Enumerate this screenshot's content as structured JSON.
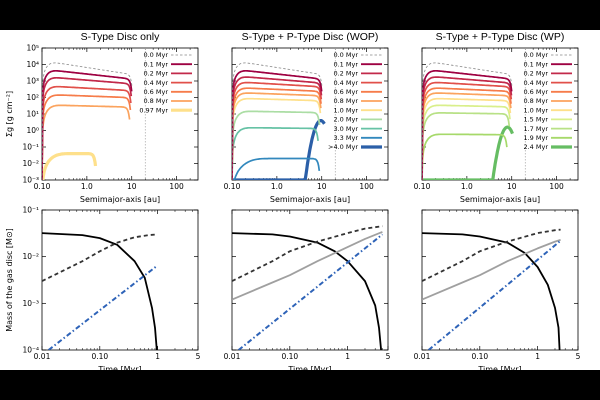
{
  "figure": {
    "panel_titles": [
      "S-Type Disc only",
      "S-Type + P-Type Disc (WOP)",
      "S-Type + P-Type Disc (WP)"
    ],
    "top_ylabel": "Σg [g cm⁻²]",
    "top_xlabel": "Semimajor-axis [au]",
    "bottom_ylabel": "Mass of the gas disc [M⊙]",
    "bottom_xlabel": "Time [Myr]"
  },
  "chart_data": [
    {
      "type": "line",
      "panel": "top",
      "title": "S-Type Disc only",
      "xlabel": "Semimajor-axis [au]",
      "ylabel": "Σg [g cm⁻²]",
      "xscale": "log",
      "yscale": "log",
      "xlim": [
        0.1,
        300
      ],
      "ylim": [
        0.001,
        100000
      ],
      "xticks": [
        "0.10",
        "1.0",
        "10",
        "100"
      ],
      "yticks": [
        "10⁻³",
        "10⁻²",
        "10⁻¹",
        "10⁰",
        "10¹",
        "10²",
        "10³",
        "10⁴",
        "10⁵"
      ],
      "vline_au": 20,
      "legend_position": "top-right",
      "series": [
        {
          "name": "0.0 Myr",
          "color": "#888888",
          "dashed": true,
          "peak": 16000,
          "rpeak": 0.12,
          "slope": -0.42,
          "rcut": 9.8
        },
        {
          "name": "0.1 Myr",
          "color": "#9e0142",
          "peak": 5000,
          "rpeak": 0.12,
          "slope": -0.3,
          "rcut": 9.6
        },
        {
          "name": "0.2 Myr",
          "color": "#c2294a",
          "peak": 1800,
          "rpeak": 0.12,
          "slope": -0.22,
          "rcut": 9.4
        },
        {
          "name": "0.4 Myr",
          "color": "#e1504a",
          "peak": 500,
          "rpeak": 0.13,
          "slope": -0.15,
          "rcut": 9.2
        },
        {
          "name": "0.6 Myr",
          "color": "#f67c4a",
          "peak": 150,
          "rpeak": 0.14,
          "slope": -0.1,
          "rcut": 9.0
        },
        {
          "name": "0.8 Myr",
          "color": "#fba35e",
          "peak": 35,
          "rpeak": 0.15,
          "slope": -0.07,
          "rcut": 8.6
        },
        {
          "name": "0.97 Myr",
          "color": "#fee08b",
          "peak": 0.04,
          "rpeak": 0.28,
          "slope": 0.0,
          "rcut": 1.5,
          "thick": true
        }
      ]
    },
    {
      "type": "line",
      "panel": "top",
      "title": "S-Type + P-Type Disc (WOP)",
      "xlabel": "Semimajor-axis [au]",
      "ylabel": "",
      "xscale": "log",
      "yscale": "log",
      "xlim": [
        0.1,
        300
      ],
      "ylim": [
        0.001,
        100000
      ],
      "xticks": [
        "0.10",
        "1.0",
        "10",
        "100"
      ],
      "vline_au": 20,
      "legend_position": "top-right",
      "series": [
        {
          "name": "0.0 Myr",
          "color": "#888888",
          "dashed": true,
          "peak": 16000,
          "rpeak": 0.12,
          "slope": -0.42,
          "rcut": 9.8
        },
        {
          "name": "0.1 Myr",
          "color": "#9e0142",
          "peak": 5000,
          "rpeak": 0.12,
          "slope": -0.3,
          "rcut": 9.6
        },
        {
          "name": "0.2 Myr",
          "color": "#c2294a",
          "peak": 2000,
          "rpeak": 0.12,
          "slope": -0.22,
          "rcut": 9.5
        },
        {
          "name": "0.4 Myr",
          "color": "#e1504a",
          "peak": 900,
          "rpeak": 0.12,
          "slope": -0.16,
          "rcut": 9.4
        },
        {
          "name": "0.6 Myr",
          "color": "#f67c4a",
          "peak": 400,
          "rpeak": 0.12,
          "slope": -0.12,
          "rcut": 9.3
        },
        {
          "name": "0.8 Myr",
          "color": "#fba35e",
          "peak": 200,
          "rpeak": 0.12,
          "slope": -0.1,
          "rcut": 9.2
        },
        {
          "name": "1.0 Myr",
          "color": "#fee08b",
          "peak": 90,
          "rpeak": 0.13,
          "slope": -0.08,
          "rcut": 9.0
        },
        {
          "name": "2.0 Myr",
          "color": "#abdda4",
          "peak": 15,
          "rpeak": 0.14,
          "slope": -0.05,
          "rcut": 8.6
        },
        {
          "name": "3.0 Myr",
          "color": "#66c2a5",
          "peak": 1.5,
          "rpeak": 0.15,
          "slope": -0.03,
          "rcut": 8.0
        },
        {
          "name": "3.3 Myr",
          "color": "#3288bd",
          "peak": 0.02,
          "rpeak": 0.5,
          "slope": 0.0,
          "rcut": 8.5
        },
        {
          "name": ">4.0 Myr",
          "color": "#2b5fa8",
          "peak": 0.05,
          "rpeak": 9.5,
          "slope": 0.0,
          "rcut": 11,
          "thick": true
        }
      ]
    },
    {
      "type": "line",
      "panel": "top",
      "title": "S-Type + P-Type Disc (WP)",
      "xlabel": "Semimajor-axis [au]",
      "ylabel": "",
      "xscale": "log",
      "yscale": "log",
      "xlim": [
        0.1,
        300
      ],
      "ylim": [
        0.001,
        100000
      ],
      "xticks": [
        "0.10",
        "1.0",
        "10",
        "100"
      ],
      "vline_au": 20,
      "legend_position": "top-right",
      "series": [
        {
          "name": "0.0 Myr",
          "color": "#888888",
          "dashed": true,
          "peak": 16000,
          "rpeak": 0.12,
          "slope": -0.42,
          "rcut": 9.8
        },
        {
          "name": "0.1 Myr",
          "color": "#9e0142",
          "peak": 5000,
          "rpeak": 0.12,
          "slope": -0.3,
          "rcut": 9.6
        },
        {
          "name": "0.2 Myr",
          "color": "#c2294a",
          "peak": 2000,
          "rpeak": 0.12,
          "slope": -0.22,
          "rcut": 9.5
        },
        {
          "name": "0.4 Myr",
          "color": "#e1504a",
          "peak": 900,
          "rpeak": 0.12,
          "slope": -0.16,
          "rcut": 9.4
        },
        {
          "name": "0.6 Myr",
          "color": "#f67c4a",
          "peak": 400,
          "rpeak": 0.12,
          "slope": -0.12,
          "rcut": 9.3
        },
        {
          "name": "0.8 Myr",
          "color": "#fba35e",
          "peak": 200,
          "rpeak": 0.12,
          "slope": -0.1,
          "rcut": 9.2
        },
        {
          "name": "1.0 Myr",
          "color": "#fee08b",
          "peak": 90,
          "rpeak": 0.13,
          "slope": -0.08,
          "rcut": 9.0
        },
        {
          "name": "1.5 Myr",
          "color": "#d9ef8b",
          "peak": 35,
          "rpeak": 0.13,
          "slope": -0.06,
          "rcut": 8.8
        },
        {
          "name": "1.7 Myr",
          "color": "#b8e186",
          "peak": 12,
          "rpeak": 0.14,
          "slope": -0.04,
          "rcut": 8.5
        },
        {
          "name": "1.9 Myr",
          "color": "#a6d96a",
          "peak": 0.6,
          "rpeak": 0.15,
          "slope": -0.02,
          "rcut": 7.5
        },
        {
          "name": "2.4 Myr",
          "color": "#66bd63",
          "peak": 0.02,
          "rpeak": 8.0,
          "slope": 0.0,
          "rcut": 10,
          "thick": true
        }
      ]
    },
    {
      "type": "line",
      "panel": "bottom",
      "title": "S-Type Disc only",
      "xlabel": "Time [Myr]",
      "ylabel": "Mass of the gas disc [M⊙]",
      "xscale": "log",
      "yscale": "log",
      "xlim": [
        0.01,
        5
      ],
      "ylim": [
        0.0001,
        0.1
      ],
      "xticks": [
        "0.01",
        "0.10",
        "1",
        "5"
      ],
      "yticks": [
        "10⁻⁴",
        "10⁻³",
        "10⁻²",
        "10⁻¹"
      ],
      "series": [
        {
          "style": "solid-black",
          "color": "#000000",
          "x": [
            0.01,
            0.05,
            0.1,
            0.2,
            0.4,
            0.6,
            0.8,
            0.9,
            0.97
          ],
          "y": [
            0.032,
            0.029,
            0.025,
            0.018,
            0.008,
            0.0035,
            0.0008,
            0.0003,
            0.0001
          ]
        },
        {
          "style": "dashed-black",
          "color": "#333333",
          "x": [
            0.01,
            0.05,
            0.1,
            0.2,
            0.4,
            0.7,
            1.0
          ],
          "y": [
            0.003,
            0.008,
            0.013,
            0.02,
            0.026,
            0.029,
            0.03
          ]
        },
        {
          "style": "dashdot-blue",
          "color": "#2e63b8",
          "x": [
            0.013,
            1.0
          ],
          "y": [
            0.0001,
            0.0065
          ]
        }
      ]
    },
    {
      "type": "line",
      "panel": "bottom",
      "title": "S-Type + P-Type Disc (WOP)",
      "xlabel": "Time [Myr]",
      "ylabel": "",
      "xscale": "log",
      "yscale": "log",
      "xlim": [
        0.01,
        5
      ],
      "ylim": [
        0.0001,
        0.1
      ],
      "xticks": [
        "0.01",
        "0.10",
        "1",
        "5"
      ],
      "series": [
        {
          "style": "solid-black",
          "color": "#000000",
          "x": [
            0.01,
            0.05,
            0.1,
            0.3,
            0.6,
            1.0,
            2.0,
            3.0,
            3.5,
            3.8
          ],
          "y": [
            0.032,
            0.03,
            0.027,
            0.02,
            0.013,
            0.008,
            0.003,
            0.0009,
            0.0003,
            0.0001
          ]
        },
        {
          "style": "solid-gray",
          "color": "#a0a0a0",
          "x": [
            0.01,
            0.05,
            0.1,
            0.3,
            1.0,
            2.0,
            4.0
          ],
          "y": [
            0.0012,
            0.0028,
            0.004,
            0.008,
            0.016,
            0.024,
            0.034
          ]
        },
        {
          "style": "dashed-black",
          "color": "#333333",
          "x": [
            0.01,
            0.05,
            0.1,
            0.3,
            1.0,
            2.0,
            4.0
          ],
          "y": [
            0.003,
            0.008,
            0.013,
            0.021,
            0.032,
            0.04,
            0.045
          ]
        },
        {
          "style": "dashdot-blue",
          "color": "#2e63b8",
          "x": [
            0.013,
            4.0
          ],
          "y": [
            0.0001,
            0.03
          ]
        }
      ]
    },
    {
      "type": "line",
      "panel": "bottom",
      "title": "S-Type + P-Type Disc (WP)",
      "xlabel": "Time [Myr]",
      "ylabel": "",
      "xscale": "log",
      "yscale": "log",
      "xlim": [
        0.01,
        5
      ],
      "ylim": [
        0.0001,
        0.1
      ],
      "xticks": [
        "0.01",
        "0.10",
        "1",
        "5"
      ],
      "series": [
        {
          "style": "solid-black",
          "color": "#000000",
          "x": [
            0.01,
            0.05,
            0.1,
            0.3,
            0.6,
            1.0,
            1.5,
            2.0,
            2.3,
            2.4
          ],
          "y": [
            0.032,
            0.03,
            0.027,
            0.02,
            0.012,
            0.006,
            0.0025,
            0.0008,
            0.0003,
            0.0001
          ]
        },
        {
          "style": "solid-gray",
          "color": "#a0a0a0",
          "x": [
            0.01,
            0.05,
            0.1,
            0.3,
            1.0,
            2.0,
            2.5
          ],
          "y": [
            0.0012,
            0.0028,
            0.004,
            0.008,
            0.015,
            0.021,
            0.023
          ]
        },
        {
          "style": "dashed-black",
          "color": "#333333",
          "x": [
            0.01,
            0.05,
            0.1,
            0.3,
            1.0,
            2.0,
            2.5
          ],
          "y": [
            0.003,
            0.008,
            0.013,
            0.021,
            0.032,
            0.037,
            0.038
          ]
        },
        {
          "style": "dashdot-blue",
          "color": "#2e63b8",
          "x": [
            0.013,
            2.5
          ],
          "y": [
            0.0001,
            0.022
          ]
        }
      ]
    }
  ]
}
